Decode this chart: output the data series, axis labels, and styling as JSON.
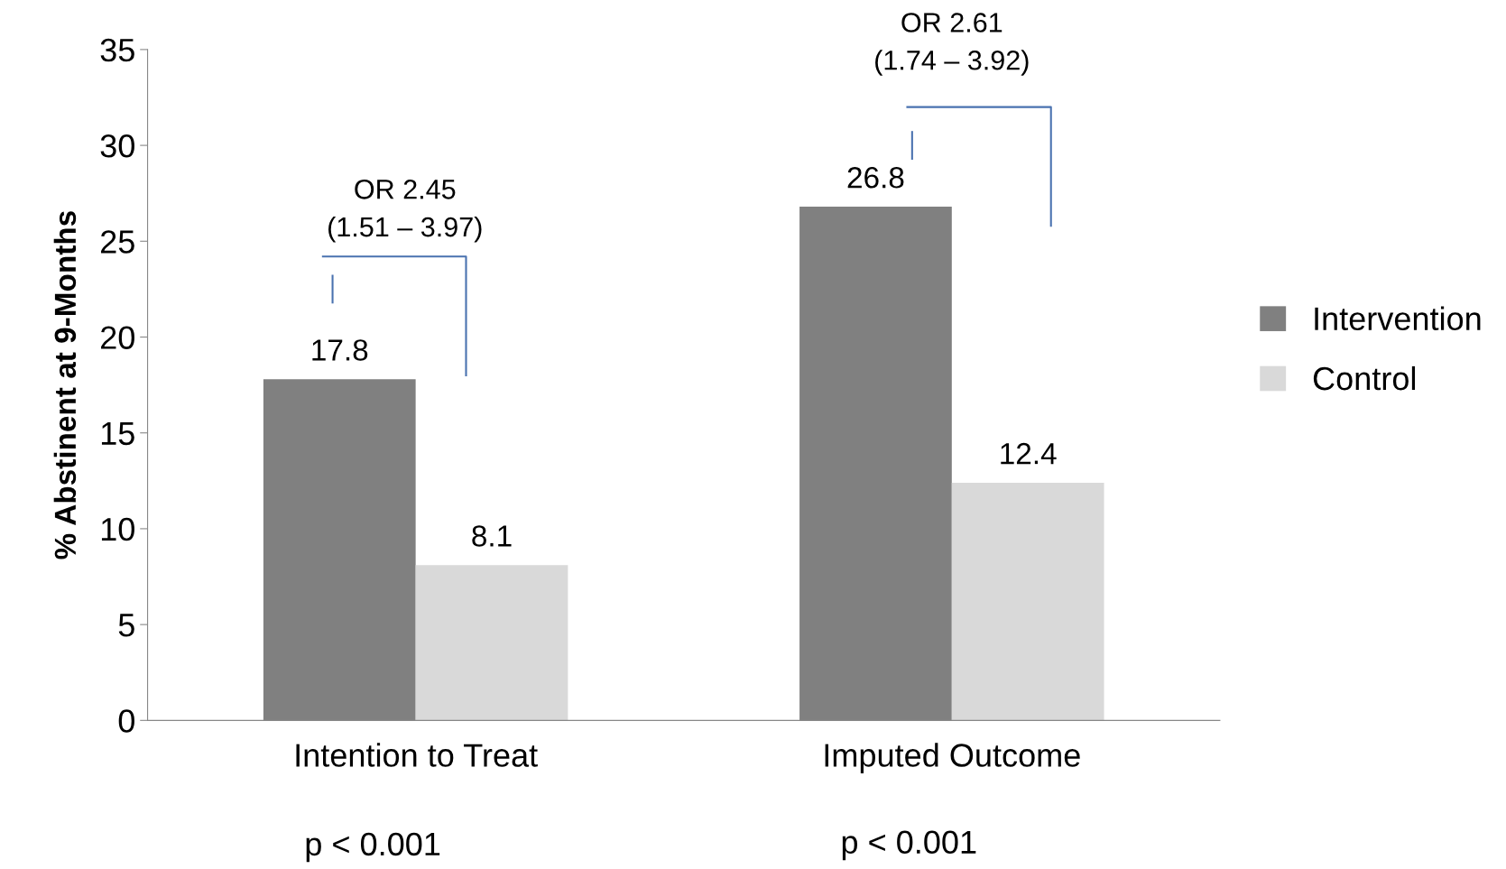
{
  "chart_data": {
    "type": "bar",
    "ylabel": "% Abstinent at 9-Months",
    "categories": [
      "Intention to Treat",
      "Imputed Outcome"
    ],
    "series": [
      {
        "name": "Intervention",
        "color": "#808080",
        "values": [
          17.8,
          26.8
        ]
      },
      {
        "name": "Control",
        "color": "#d9d9d9",
        "values": [
          8.1,
          12.4
        ]
      }
    ],
    "ylim": [
      0,
      35
    ],
    "yticks": [
      0,
      5,
      10,
      15,
      20,
      25,
      30,
      35
    ],
    "grid": false,
    "legend": "right",
    "data_labels": true,
    "annotations": [
      "OR 2.45\n(1.51 – 3.97)",
      "OR 2.61\n(1.74 – 3.92)",
      "p < 0.001",
      "p < 0.001"
    ]
  }
}
